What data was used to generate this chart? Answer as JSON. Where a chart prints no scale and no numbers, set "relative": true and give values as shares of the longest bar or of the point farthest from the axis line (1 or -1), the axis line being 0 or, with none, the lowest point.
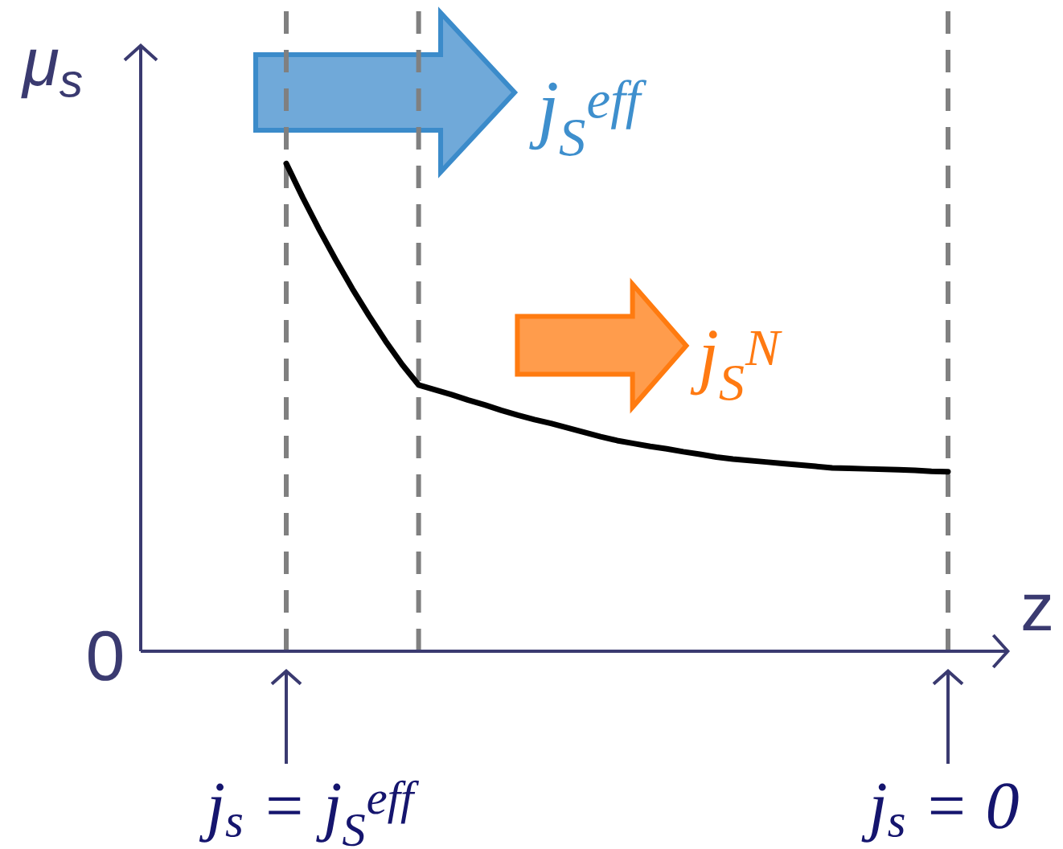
{
  "chart_data": {
    "type": "line",
    "relative": true,
    "xlabel": "z",
    "ylabel": "μ$_{s}$",
    "grid": "x",
    "categories": [
      null,
      null,
      null,
      null,
      null,
      null,
      null,
      null,
      null,
      null,
      null,
      null,
      null,
      null,
      null,
      null,
      null,
      null,
      null,
      null,
      null,
      null,
      null,
      null,
      null,
      null,
      null,
      null,
      null,
      null,
      null,
      null,
      null,
      null,
      null,
      null,
      null,
      null,
      null,
      null,
      null
    ],
    "series": [
      {
        "color": "#000000",
        "values": [
          1,
          0.93,
          0.864,
          0.802,
          0.743,
          0.688,
          0.636,
          0.588,
          0.546,
          0.536,
          0.526,
          0.515,
          0.505,
          0.494,
          0.484,
          0.475,
          0.467,
          0.458,
          0.449,
          0.44,
          0.432,
          0.426,
          0.42,
          0.415,
          0.409,
          0.404,
          0.398,
          0.394,
          0.391,
          0.388,
          0.385,
          0.382,
          0.379,
          0.376,
          0.375,
          0.374,
          0.373,
          0.372,
          0.371,
          0.369,
          0.368
        ]
      }
    ],
    "annotations": [
      "j$_{S}$$^{eff}$",
      "j$_{S}$$^{N}$",
      "0",
      "j$_{s}$ = j$_{S}$$^{eff}$",
      "j$_{s}$ = 0"
    ]
  }
}
